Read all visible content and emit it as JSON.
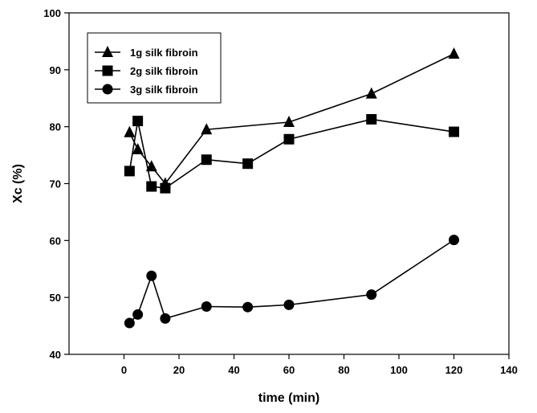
{
  "chart_data": {
    "type": "line",
    "title": "",
    "xlabel": "time (min)",
    "ylabel": "Xc (%)",
    "xlim": [
      -20,
      140
    ],
    "ylim": [
      40,
      100
    ],
    "xticks": [
      0,
      20,
      40,
      60,
      80,
      100,
      120,
      140
    ],
    "yticks": [
      40,
      50,
      60,
      70,
      80,
      90,
      100
    ],
    "grid": false,
    "legend_position": "top-left",
    "series": [
      {
        "name": "1g silk fibroin",
        "marker": "triangle",
        "color": "#000000",
        "x": [
          2,
          5,
          10,
          15,
          30,
          60,
          90,
          120
        ],
        "y": [
          79,
          76,
          73,
          70,
          79.5,
          80.8,
          85.8,
          92.8
        ]
      },
      {
        "name": "2g silk fibroin",
        "marker": "square",
        "color": "#000000",
        "x": [
          2,
          5,
          10,
          15,
          30,
          45,
          60,
          90,
          120
        ],
        "y": [
          72.2,
          81,
          69.5,
          69.2,
          74.2,
          73.5,
          77.8,
          81.3,
          79.1
        ]
      },
      {
        "name": "3g silk fibroin",
        "marker": "circle",
        "color": "#000000",
        "x": [
          2,
          5,
          10,
          15,
          30,
          45,
          60,
          90,
          120
        ],
        "y": [
          45.5,
          47,
          53.8,
          46.3,
          48.4,
          48.3,
          48.7,
          50.5,
          60.1
        ]
      }
    ]
  }
}
